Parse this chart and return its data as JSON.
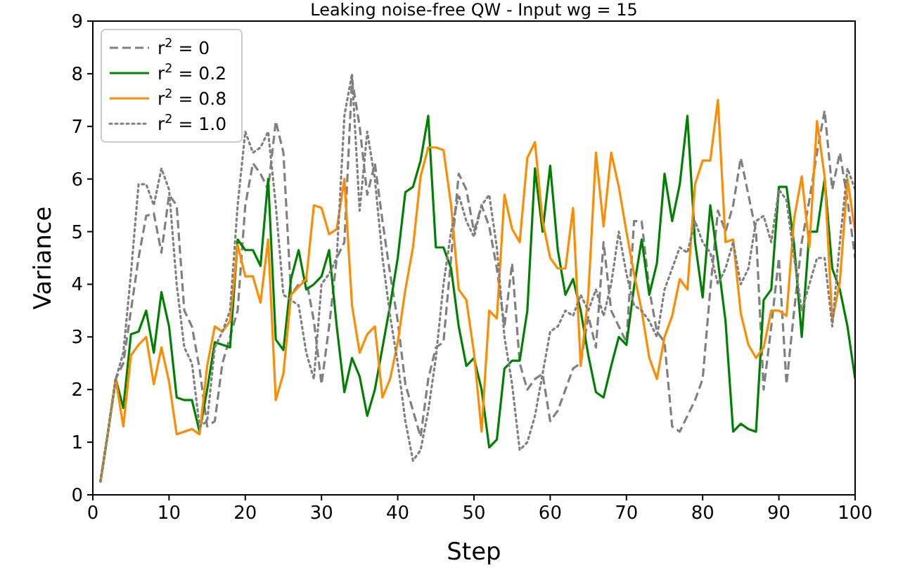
{
  "chart_data": {
    "type": "line",
    "title": "Leaking noise-free QW - Input wg = 15",
    "xlabel": "Step",
    "ylabel": "Variance",
    "x": [
      1,
      2,
      3,
      4,
      5,
      6,
      7,
      8,
      9,
      10,
      11,
      12,
      13,
      14,
      15,
      16,
      17,
      18,
      19,
      20,
      21,
      22,
      23,
      24,
      25,
      26,
      27,
      28,
      29,
      30,
      31,
      32,
      33,
      34,
      35,
      36,
      37,
      38,
      39,
      40,
      41,
      42,
      43,
      44,
      45,
      46,
      47,
      48,
      49,
      50,
      51,
      52,
      53,
      54,
      55,
      56,
      57,
      58,
      59,
      60,
      61,
      62,
      63,
      64,
      65,
      66,
      67,
      68,
      69,
      70,
      71,
      72,
      73,
      74,
      75,
      76,
      77,
      78,
      79,
      80,
      81,
      82,
      83,
      84,
      85,
      86,
      87,
      88,
      89,
      90,
      91,
      92,
      93,
      94,
      95,
      96,
      97,
      98,
      99,
      100
    ],
    "xlim": [
      0,
      100
    ],
    "ylim": [
      0,
      9
    ],
    "xticks": [
      0,
      10,
      20,
      30,
      40,
      50,
      60,
      70,
      80,
      90,
      100
    ],
    "yticks": [
      0,
      1,
      2,
      3,
      4,
      5,
      6,
      7,
      8,
      9
    ],
    "grid": false,
    "legend": "top left",
    "series": [
      {
        "name": "r$^{2}$ = 0",
        "color": "#808080",
        "line_style": "dashed",
        "values": [
          0.25,
          1.2,
          2.2,
          2.5,
          3.5,
          4.5,
          5.3,
          5.35,
          4.6,
          5.7,
          5.5,
          3.5,
          3.2,
          2.4,
          1.3,
          1.4,
          2.5,
          3.0,
          3.5,
          5.5,
          6.3,
          6.1,
          5.8,
          7.1,
          6.5,
          3.8,
          4.0,
          4.1,
          3.3,
          2.1,
          3.2,
          4.5,
          4.8,
          7.9,
          7.0,
          5.7,
          6.3,
          5.2,
          4.2,
          3.3,
          2.1,
          1.6,
          1.1,
          2.2,
          2.8,
          2.9,
          4.5,
          6.1,
          5.8,
          5.0,
          5.5,
          5.1,
          4.3,
          3.2,
          4.4,
          2.5,
          2.0,
          2.2,
          2.3,
          1.4,
          1.6,
          2.0,
          2.4,
          2.5,
          3.4,
          2.8,
          4.8,
          3.5,
          3.2,
          2.9,
          5.2,
          5.2,
          3.9,
          3.1,
          2.9,
          1.3,
          1.2,
          1.5,
          1.8,
          2.2,
          3.9,
          5.4,
          5.0,
          5.5,
          6.4,
          5.7,
          5.0,
          2.0,
          3.2,
          4.5,
          2.1,
          3.5,
          4.8,
          5.6,
          6.5,
          7.3,
          5.8,
          6.5,
          5.6,
          4.5
        ]
      },
      {
        "name": "r$^{2}$ = 0.2",
        "color": "#008000",
        "line_style": "solid",
        "values": [
          0.25,
          1.2,
          2.2,
          1.65,
          3.05,
          3.1,
          3.5,
          2.7,
          3.85,
          3.2,
          1.85,
          1.8,
          1.8,
          1.2,
          2.0,
          2.9,
          2.85,
          2.8,
          4.85,
          4.65,
          4.65,
          4.35,
          6.0,
          2.95,
          2.75,
          4.1,
          4.65,
          3.9,
          4.0,
          4.15,
          4.65,
          3.2,
          1.95,
          2.6,
          2.25,
          1.5,
          2.0,
          2.8,
          3.6,
          4.5,
          5.75,
          5.85,
          6.35,
          7.2,
          4.7,
          4.7,
          4.3,
          3.2,
          2.45,
          2.6,
          2.0,
          0.9,
          1.05,
          2.4,
          2.55,
          2.55,
          3.5,
          6.2,
          5.0,
          6.25,
          4.65,
          3.8,
          4.1,
          3.5,
          2.65,
          1.95,
          1.85,
          2.45,
          3.0,
          2.85,
          3.95,
          4.85,
          3.8,
          4.4,
          6.1,
          5.2,
          5.9,
          7.2,
          4.8,
          3.75,
          5.5,
          4.45,
          3.3,
          1.2,
          1.35,
          1.25,
          1.2,
          3.7,
          3.9,
          5.85,
          5.85,
          4.75,
          3.0,
          5.0,
          5.0,
          6.0,
          4.3,
          3.9,
          3.2,
          2.2
        ]
      },
      {
        "name": "r$^{2}$ = 0.8",
        "color": "#ff8c00",
        "line_style": "solid",
        "values": [
          0.25,
          1.2,
          2.2,
          1.3,
          2.65,
          2.85,
          3.0,
          2.1,
          2.8,
          2.15,
          1.15,
          1.2,
          1.25,
          1.15,
          2.45,
          3.2,
          3.1,
          3.3,
          4.75,
          4.15,
          4.15,
          3.65,
          4.85,
          1.8,
          2.3,
          3.8,
          3.95,
          4.1,
          5.5,
          5.45,
          4.95,
          5.05,
          6.0,
          3.6,
          2.7,
          3.05,
          3.2,
          1.85,
          2.2,
          2.9,
          3.9,
          4.7,
          6.05,
          6.6,
          6.6,
          6.55,
          5.5,
          3.9,
          3.7,
          2.7,
          1.2,
          3.5,
          3.35,
          5.7,
          5.05,
          4.8,
          6.4,
          6.7,
          5.2,
          4.5,
          4.3,
          4.3,
          5.45,
          2.45,
          3.8,
          6.5,
          5.1,
          6.5,
          5.85,
          5.0,
          4.2,
          3.5,
          2.6,
          2.2,
          3.0,
          3.4,
          4.1,
          3.9,
          5.9,
          6.35,
          6.35,
          7.5,
          4.8,
          4.85,
          3.45,
          2.85,
          2.6,
          2.8,
          3.5,
          3.5,
          3.4,
          5.25,
          6.05,
          4.7,
          7.1,
          6.05,
          3.3,
          4.05,
          6.0,
          5.0
        ]
      },
      {
        "name": "r$^{2}$ = 1.0",
        "color": "#808080",
        "line_style": "dotted",
        "values": [
          0.25,
          1.2,
          2.2,
          2.7,
          4.2,
          5.9,
          5.9,
          5.5,
          6.2,
          5.8,
          4.0,
          2.8,
          2.5,
          1.3,
          1.4,
          2.8,
          3.1,
          3.5,
          5.5,
          6.9,
          6.5,
          6.6,
          6.9,
          5.5,
          3.8,
          3.7,
          3.6,
          2.7,
          2.2,
          4.0,
          4.2,
          4.5,
          7.2,
          8.0,
          5.4,
          6.9,
          6.0,
          4.5,
          3.4,
          2.5,
          1.4,
          0.65,
          0.85,
          1.6,
          2.6,
          4.0,
          5.0,
          5.7,
          5.2,
          4.9,
          5.5,
          5.7,
          4.7,
          3.0,
          2.1,
          0.85,
          1.0,
          1.5,
          2.3,
          3.1,
          3.2,
          3.5,
          3.4,
          3.8,
          3.5,
          3.9,
          3.4,
          4.0,
          5.0,
          4.2,
          3.6,
          3.5,
          3.3,
          3.0,
          3.9,
          4.3,
          4.7,
          4.6,
          5.2,
          4.8,
          4.6,
          4.0,
          4.3,
          4.8,
          4.0,
          4.3,
          5.2,
          5.3,
          4.8,
          5.8,
          5.6,
          4.5,
          3.5,
          4.0,
          4.5,
          4.5,
          3.2,
          4.8,
          6.2,
          5.8
        ]
      }
    ]
  }
}
